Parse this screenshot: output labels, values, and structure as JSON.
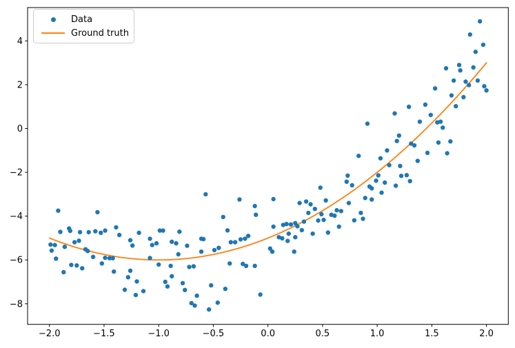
{
  "chart_data": {
    "type": "scatter",
    "title": "",
    "xlabel": "",
    "ylabel": "",
    "xlim": [
      -2.2,
      2.2
    ],
    "ylim": [
      -8.94,
      5.52
    ],
    "grid": false,
    "x_ticks": {
      "values": [
        -2.0,
        -1.5,
        -1.0,
        -0.5,
        0.0,
        0.5,
        1.0,
        1.5,
        2.0
      ],
      "labels": [
        "−2.0",
        "−1.5",
        "−1.0",
        "−0.5",
        "0.0",
        "0.5",
        "1.0",
        "1.5",
        "2.0"
      ]
    },
    "y_ticks": {
      "values": [
        4,
        2,
        0,
        -2,
        -4,
        -6,
        -8
      ],
      "labels": [
        "4",
        "2",
        "0",
        "−2",
        "−4",
        "−6",
        "−8"
      ]
    },
    "legend": {
      "position": "upper left",
      "entries": [
        {
          "label": "Data",
          "type": "marker",
          "color": "#1f77b4"
        },
        {
          "label": "Ground truth",
          "type": "line",
          "color": "#ff7f0e"
        }
      ]
    },
    "series": [
      {
        "name": "Data",
        "type": "scatter",
        "color": "#1f77b4",
        "marker": "o",
        "marker_radius": 3.2,
        "points": [
          [
            -1.92,
            -3.75
          ],
          [
            -1.56,
            -3.82
          ],
          [
            -1.9,
            -4.72
          ],
          [
            -1.82,
            -4.56
          ],
          [
            -1.81,
            -4.67
          ],
          [
            -1.72,
            -4.73
          ],
          [
            -1.64,
            -4.73
          ],
          [
            -1.58,
            -4.69
          ],
          [
            -1.53,
            -4.76
          ],
          [
            -1.49,
            -4.66
          ],
          [
            -1.39,
            -4.51
          ],
          [
            -1.36,
            -4.86
          ],
          [
            -1.18,
            -4.76
          ],
          [
            -1.08,
            -5.03
          ],
          [
            -1.26,
            -5.1
          ],
          [
            -1.24,
            -5.34
          ],
          [
            -1.99,
            -5.3
          ],
          [
            -1.95,
            -5.32
          ],
          [
            -1.98,
            -5.57
          ],
          [
            -1.77,
            -5.19
          ],
          [
            -1.73,
            -5.12
          ],
          [
            -1.86,
            -5.4
          ],
          [
            -1.67,
            -5.51
          ],
          [
            -1.65,
            -5.59
          ],
          [
            -1.6,
            -5.86
          ],
          [
            -1.94,
            -5.94
          ],
          [
            -1.87,
            -6.56
          ],
          [
            -1.8,
            -6.23
          ],
          [
            -1.75,
            -6.25
          ],
          [
            -1.7,
            -6.38
          ],
          [
            -1.52,
            -6.16
          ],
          [
            -1.49,
            -5.9
          ],
          [
            -1.45,
            -5.92
          ],
          [
            -1.42,
            -5.92
          ],
          [
            -1.41,
            -6.53
          ],
          [
            -1.31,
            -7.36
          ],
          [
            -1.28,
            -6.79
          ],
          [
            -1.26,
            -6.49
          ],
          [
            -1.2,
            -6.98
          ],
          [
            -1.14,
            -7.42
          ],
          [
            -1.21,
            -7.6
          ],
          [
            -1.08,
            -5.91
          ],
          [
            -0.57,
            -3.0
          ],
          [
            -0.26,
            -3.24
          ],
          [
            -0.12,
            -3.54
          ],
          [
            -0.11,
            -3.94
          ],
          [
            -0.41,
            -4.04
          ],
          [
            -0.37,
            -4.65
          ],
          [
            -0.99,
            -4.66
          ],
          [
            -0.96,
            -4.66
          ],
          [
            -0.81,
            -4.71
          ],
          [
            -0.61,
            -5.03
          ],
          [
            -0.59,
            -5.05
          ],
          [
            -1.06,
            -5.32
          ],
          [
            -1.02,
            -5.24
          ],
          [
            -0.88,
            -5.17
          ],
          [
            -0.84,
            -5.24
          ],
          [
            -0.74,
            -5.35
          ],
          [
            -0.82,
            -5.74
          ],
          [
            -0.61,
            -5.62
          ],
          [
            -0.49,
            -5.55
          ],
          [
            -0.45,
            -5.45
          ],
          [
            -0.34,
            -5.19
          ],
          [
            -0.3,
            -5.19
          ],
          [
            -0.25,
            -5.06
          ],
          [
            -0.21,
            -5.03
          ],
          [
            -0.18,
            -4.9
          ],
          [
            -0.35,
            -6.16
          ],
          [
            -0.23,
            -6.18
          ],
          [
            -0.2,
            -6.27
          ],
          [
            -0.12,
            -6.27
          ],
          [
            -1.0,
            -6.21
          ],
          [
            -0.89,
            -6.27
          ],
          [
            -0.72,
            -6.32
          ],
          [
            -0.68,
            -6.29
          ],
          [
            -0.88,
            -6.74
          ],
          [
            -0.94,
            -7.0
          ],
          [
            -0.92,
            -7.21
          ],
          [
            -0.78,
            -7.06
          ],
          [
            -0.76,
            -7.37
          ],
          [
            -0.52,
            -7.16
          ],
          [
            -0.39,
            -7.32
          ],
          [
            -0.65,
            -7.63
          ],
          [
            -0.7,
            -7.97
          ],
          [
            -0.67,
            -8.08
          ],
          [
            -0.46,
            -7.95
          ],
          [
            -0.54,
            -8.26
          ],
          [
            -0.07,
            -7.58
          ],
          [
            0.02,
            -5.48
          ],
          [
            0.04,
            -5.62
          ],
          [
            0.05,
            -3.22
          ],
          [
            0.29,
            -3.4
          ],
          [
            0.35,
            -3.33
          ],
          [
            0.39,
            -3.46
          ],
          [
            0.53,
            -3.28
          ],
          [
            0.74,
            -3.4
          ],
          [
            0.89,
            -3.17
          ],
          [
            0.95,
            -3.24
          ],
          [
            1.04,
            -2.93
          ],
          [
            0.43,
            -3.67
          ],
          [
            0.37,
            -3.85
          ],
          [
            0.49,
            -3.91
          ],
          [
            0.58,
            -3.94
          ],
          [
            0.61,
            -3.98
          ],
          [
            0.63,
            -3.73
          ],
          [
            0.67,
            -3.77
          ],
          [
            0.85,
            -3.85
          ],
          [
            0.87,
            -4.12
          ],
          [
            0.79,
            -4.19
          ],
          [
            0.25,
            -4.32
          ],
          [
            0.27,
            -4.46
          ],
          [
            0.33,
            -4.25
          ],
          [
            0.14,
            -4.4
          ],
          [
            0.17,
            -4.36
          ],
          [
            0.21,
            -4.38
          ],
          [
            0.46,
            -4.2
          ],
          [
            0.51,
            -4.17
          ],
          [
            0.65,
            -4.48
          ],
          [
            0.31,
            -4.64
          ],
          [
            0.19,
            -4.8
          ],
          [
            0.25,
            -4.96
          ],
          [
            0.41,
            -4.8
          ],
          [
            0.55,
            -4.75
          ],
          [
            0.13,
            -5.01
          ],
          [
            0.18,
            -5.13
          ],
          [
            0.1,
            -4.96
          ],
          [
            0.24,
            -5.62
          ],
          [
            0.05,
            -4.48
          ],
          [
            1.16,
            0.69
          ],
          [
            0.91,
            0.22
          ],
          [
            0.83,
            -1.25
          ],
          [
            1.03,
            -1.36
          ],
          [
            1.09,
            -1.0
          ],
          [
            0.73,
            -2.15
          ],
          [
            0.72,
            -2.43
          ],
          [
            0.77,
            -2.59
          ],
          [
            1.01,
            -2.14
          ],
          [
            0.99,
            -2.38
          ],
          [
            1.07,
            -2.47
          ],
          [
            0.93,
            -2.65
          ],
          [
            0.95,
            -2.73
          ],
          [
            0.48,
            -2.7
          ],
          [
            1.94,
            4.89
          ],
          [
            1.85,
            4.29
          ],
          [
            1.97,
            3.82
          ],
          [
            1.9,
            3.5
          ],
          [
            1.75,
            2.9
          ],
          [
            1.63,
            2.75
          ],
          [
            1.76,
            2.65
          ],
          [
            1.88,
            2.79
          ],
          [
            1.7,
            2.19
          ],
          [
            1.92,
            2.19
          ],
          [
            1.81,
            2.14
          ],
          [
            1.84,
            1.98
          ],
          [
            1.53,
            1.83
          ],
          [
            1.68,
            1.51
          ],
          [
            1.98,
            1.93
          ],
          [
            2.0,
            1.74
          ],
          [
            1.79,
            1.43
          ],
          [
            1.29,
            0.99
          ],
          [
            1.44,
            1.09
          ],
          [
            1.72,
            1.02
          ],
          [
            1.49,
            0.62
          ],
          [
            1.39,
            0.31
          ],
          [
            1.55,
            0.28
          ],
          [
            1.58,
            0.31
          ],
          [
            1.6,
            0.04
          ],
          [
            1.2,
            -0.32
          ],
          [
            1.18,
            -0.57
          ],
          [
            1.31,
            -0.69
          ],
          [
            1.34,
            -0.77
          ],
          [
            1.46,
            -1.11
          ],
          [
            1.56,
            -0.64
          ],
          [
            1.67,
            -0.59
          ],
          [
            1.64,
            -1.13
          ],
          [
            1.37,
            -1.48
          ],
          [
            1.11,
            -1.67
          ],
          [
            1.21,
            -1.71
          ],
          [
            1.22,
            -2.16
          ],
          [
            1.27,
            -2.13
          ],
          [
            1.3,
            -2.4
          ],
          [
            1.17,
            -2.61
          ]
        ]
      },
      {
        "name": "Ground truth",
        "type": "line",
        "color": "#ff7f0e",
        "line_width": 1.8,
        "x_range": [
          -2.0,
          2.0
        ],
        "poly_coeffs": [
          1,
          2,
          -5
        ],
        "sample_points": [
          [
            -2.0,
            -5.0
          ],
          [
            -1.5,
            -5.75
          ],
          [
            -1.0,
            -6.0
          ],
          [
            -0.5,
            -5.75
          ],
          [
            0.0,
            -5.0
          ],
          [
            0.5,
            -3.75
          ],
          [
            1.0,
            -2.0
          ],
          [
            1.5,
            0.25
          ],
          [
            2.0,
            3.0
          ]
        ]
      }
    ]
  }
}
